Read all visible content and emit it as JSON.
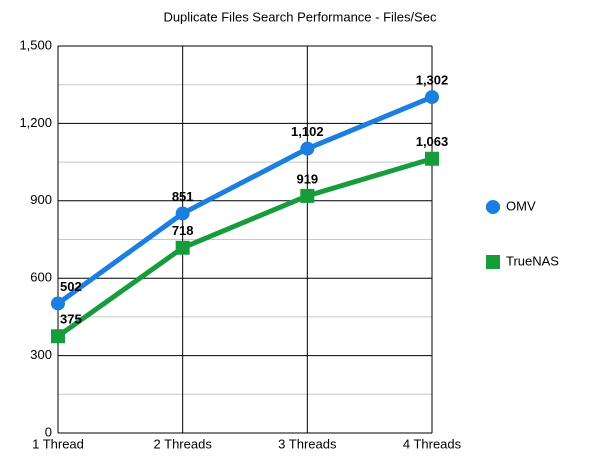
{
  "chart_data": {
    "type": "line",
    "title": "Duplicate Files Search Performance - Files/Sec",
    "categories": [
      "1 Thread",
      "2 Threads",
      "3 Threads",
      "4 Threads"
    ],
    "series": [
      {
        "name": "OMV",
        "color": "#1a7fde",
        "marker": "circle",
        "values": [
          502,
          851,
          1102,
          1302
        ],
        "value_labels": [
          "502",
          "851",
          "1,102",
          "1,302"
        ]
      },
      {
        "name": "TrueNAS",
        "color": "#179c3c",
        "marker": "square",
        "values": [
          375,
          718,
          919,
          1063
        ],
        "value_labels": [
          "375",
          "718",
          "919",
          "1,063"
        ]
      }
    ],
    "ylim": [
      0,
      1500
    ],
    "yticks": [
      0,
      300,
      600,
      900,
      {
        "value": 1200,
        "label": "1,200"
      },
      {
        "value": 1500,
        "label": "1,500"
      }
    ],
    "minor_yticks": [
      150,
      450,
      750,
      1050,
      1350
    ],
    "grid": true,
    "legend": "right"
  }
}
